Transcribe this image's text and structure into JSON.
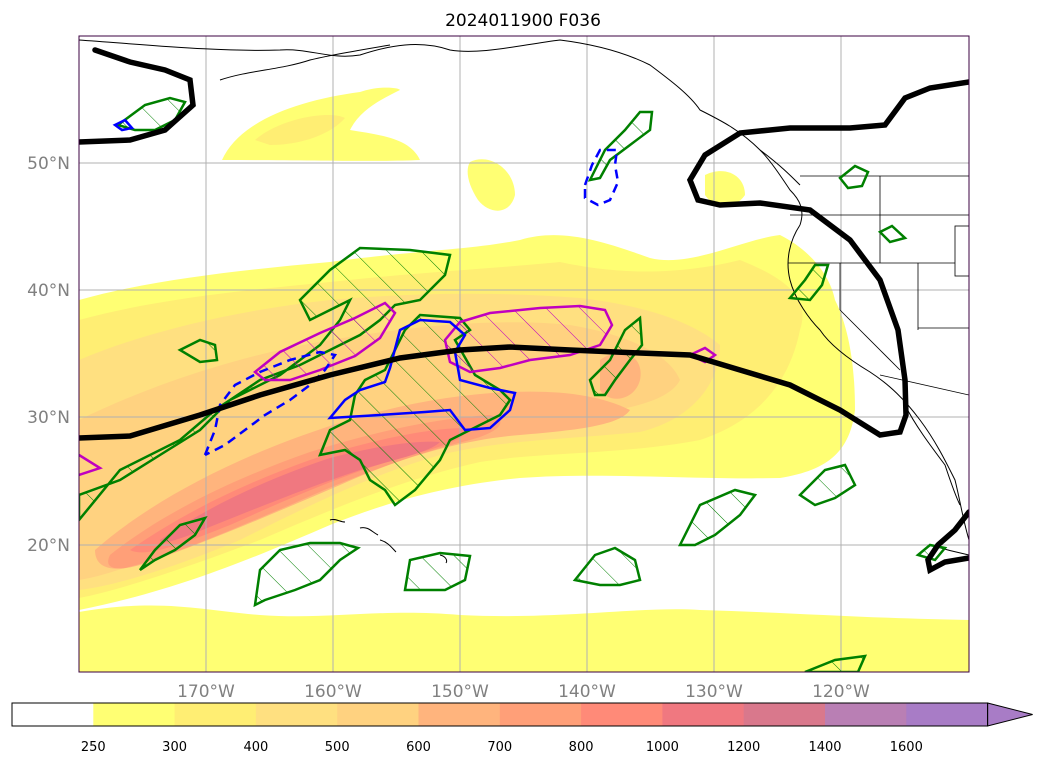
{
  "title": "2024011900 F036",
  "axes": {
    "lat_labels": [
      "50°N",
      "40°N",
      "30°N",
      "20°N"
    ],
    "lat_values": [
      50,
      40,
      30,
      20
    ],
    "lon_labels": [
      "170°W",
      "160°W",
      "150°W",
      "140°W",
      "130°W",
      "120°W"
    ],
    "lon_values": [
      -170,
      -160,
      -150,
      -140,
      -130,
      -120
    ],
    "lon_range": [
      -180,
      -110
    ],
    "lat_range": [
      10,
      60
    ],
    "grid": true
  },
  "colorbar": {
    "labels": [
      "250",
      "300",
      "400",
      "500",
      "600",
      "700",
      "800",
      "1000",
      "1200",
      "1400",
      "1600"
    ],
    "colors": [
      "#ffffff",
      "#ffff73",
      "#ffee73",
      "#ffe080",
      "#ffd280",
      "#ffb47d",
      "#ff9f78",
      "#ff8a78",
      "#f07880",
      "#d9788c",
      "#b97fb4",
      "#a87cc6"
    ],
    "extend": "max"
  },
  "legend_colors": {
    "jet_contour": "#000000",
    "green_hatch": "#008000",
    "magenta_hatch": "#c000c0",
    "blue_contour": "#0000ff",
    "coastline": "#000000"
  }
}
